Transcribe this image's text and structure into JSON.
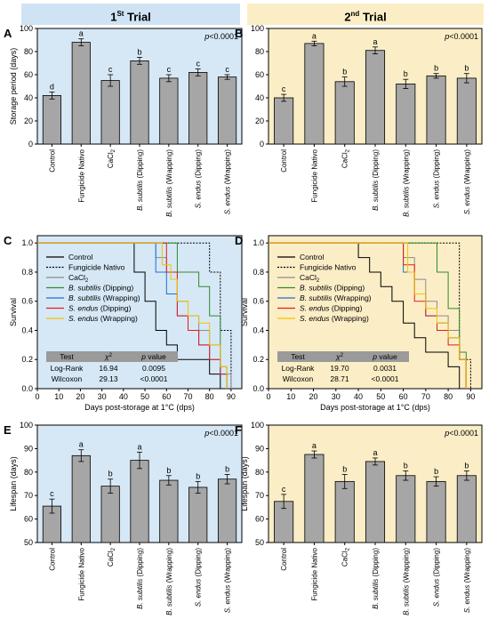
{
  "headers": {
    "trial1": "1St Trial",
    "trial1_main": "1",
    "trial1_sup": "St",
    "trial1_rest": " Trial",
    "trial2_main": "2",
    "trial2_sup": "nd",
    "trial2_rest": " Trial"
  },
  "colors": {
    "trial1_bg": "#d6e8f6",
    "trial2_bg": "#fbeec6",
    "bar": "#a6a6a6",
    "control": "#000000",
    "fungicide": "#000000",
    "cacl2": "#8c8c8c",
    "bs_dip": "#2e8b2e",
    "bs_wrap": "#1f6fd1",
    "se_dip": "#e21c1c",
    "se_wrap": "#f2c200"
  },
  "chart_data": [
    {
      "panel": "A",
      "type": "bar",
      "pvalue": "p<0.0001",
      "ylabel": "Storage period (days)",
      "ylim": [
        0,
        100
      ],
      "yticks": [
        0,
        20,
        40,
        60,
        80,
        100
      ],
      "categories": [
        "Control",
        "Fungicide Nativo",
        "CaCl2",
        "B. subtilis (Dipping)",
        "B. subtilis (Wrapping)",
        "S. endus (Dipping)",
        "S. endus (Wrapping)"
      ],
      "values": [
        42,
        88,
        55,
        72,
        57,
        62,
        58
      ],
      "errors": [
        3,
        3,
        5,
        3,
        3,
        3,
        2
      ],
      "letters": [
        "d",
        "a",
        "c",
        "b",
        "c",
        "c",
        "c"
      ]
    },
    {
      "panel": "B",
      "type": "bar",
      "pvalue": "p<0.0001",
      "ylabel": "",
      "ylim": [
        0,
        100
      ],
      "yticks": [
        0,
        20,
        40,
        60,
        80,
        100
      ],
      "categories": [
        "Control",
        "Fungicide Nativo",
        "CaCl2",
        "B. subtilis (Dipping)",
        "B. subtilis (Wrapping)",
        "S. endus (Dipping)",
        "S. endus (Wrapping)"
      ],
      "values": [
        40,
        87,
        54,
        81,
        52,
        59,
        57
      ],
      "errors": [
        3,
        2,
        4,
        3,
        4,
        2,
        4
      ],
      "letters": [
        "c",
        "a",
        "b",
        "a",
        "b",
        "b",
        "b"
      ]
    },
    {
      "panel": "C",
      "type": "line",
      "ylabel": "Survival",
      "xlabel": "Days post-storage at 1°C (dps)",
      "xlim": [
        0,
        95
      ],
      "ylim": [
        0,
        1.05
      ],
      "xticks": [
        0,
        10,
        20,
        30,
        40,
        50,
        60,
        70,
        80,
        90
      ],
      "yticks": [
        0.0,
        0.2,
        0.4,
        0.6,
        0.8,
        1.0
      ],
      "series": [
        {
          "name": "Control",
          "key": "control",
          "points": [
            [
              0,
              1
            ],
            [
              45,
              1
            ],
            [
              45,
              0.8
            ],
            [
              50,
              0.8
            ],
            [
              50,
              0.6
            ],
            [
              55,
              0.6
            ],
            [
              55,
              0.4
            ],
            [
              60,
              0.4
            ],
            [
              60,
              0.3
            ],
            [
              65,
              0.3
            ],
            [
              65,
              0.2
            ],
            [
              80,
              0.2
            ],
            [
              80,
              0.1
            ],
            [
              85,
              0.1
            ],
            [
              85,
              0
            ]
          ]
        },
        {
          "name": "Fungicide Nativo",
          "key": "fungicide",
          "points": [
            [
              0,
              1
            ],
            [
              80,
              1
            ],
            [
              80,
              0.8
            ],
            [
              85,
              0.8
            ],
            [
              85,
              0.4
            ],
            [
              90,
              0.4
            ],
            [
              90,
              0
            ]
          ]
        },
        {
          "name": "CaCl2",
          "key": "cacl2",
          "points": [
            [
              0,
              1
            ],
            [
              55,
              1
            ],
            [
              55,
              0.9
            ],
            [
              60,
              0.9
            ],
            [
              60,
              0.8
            ],
            [
              65,
              0.8
            ],
            [
              65,
              0.6
            ],
            [
              70,
              0.6
            ],
            [
              70,
              0.5
            ],
            [
              75,
              0.5
            ],
            [
              75,
              0.4
            ],
            [
              80,
              0.4
            ],
            [
              80,
              0.3
            ],
            [
              85,
              0.3
            ],
            [
              85,
              0.1
            ],
            [
              90,
              0.1
            ],
            [
              90,
              0
            ]
          ]
        },
        {
          "name": "B. subtilis (Dipping)",
          "key": "bs_dip",
          "points": [
            [
              0,
              1
            ],
            [
              65,
              1
            ],
            [
              65,
              0.8
            ],
            [
              75,
              0.8
            ],
            [
              75,
              0.7
            ],
            [
              80,
              0.7
            ],
            [
              80,
              0.5
            ],
            [
              85,
              0.5
            ],
            [
              85,
              0.15
            ],
            [
              88,
              0.15
            ],
            [
              88,
              0
            ]
          ]
        },
        {
          "name": "B. subtilis (Wrapping)",
          "key": "bs_wrap",
          "points": [
            [
              0,
              1
            ],
            [
              55,
              1
            ],
            [
              55,
              0.8
            ],
            [
              60,
              0.8
            ],
            [
              60,
              0.65
            ],
            [
              65,
              0.65
            ],
            [
              65,
              0.5
            ],
            [
              70,
              0.5
            ],
            [
              70,
              0.4
            ],
            [
              75,
              0.4
            ],
            [
              75,
              0.3
            ],
            [
              80,
              0.3
            ],
            [
              80,
              0.2
            ],
            [
              85,
              0.2
            ],
            [
              85,
              0.1
            ],
            [
              88,
              0.1
            ],
            [
              88,
              0
            ]
          ]
        },
        {
          "name": "S. endus (Dipping)",
          "key": "se_dip",
          "points": [
            [
              0,
              1
            ],
            [
              60,
              1
            ],
            [
              60,
              0.8
            ],
            [
              65,
              0.8
            ],
            [
              65,
              0.5
            ],
            [
              70,
              0.5
            ],
            [
              70,
              0.4
            ],
            [
              75,
              0.4
            ],
            [
              75,
              0.3
            ],
            [
              80,
              0.3
            ],
            [
              80,
              0.2
            ],
            [
              85,
              0.2
            ],
            [
              85,
              0.1
            ],
            [
              88,
              0.1
            ],
            [
              88,
              0
            ]
          ]
        },
        {
          "name": "S. endus (Wrapping)",
          "key": "se_wrap",
          "points": [
            [
              0,
              1
            ],
            [
              58,
              1
            ],
            [
              58,
              0.85
            ],
            [
              62,
              0.85
            ],
            [
              62,
              0.75
            ],
            [
              65,
              0.75
            ],
            [
              65,
              0.6
            ],
            [
              70,
              0.6
            ],
            [
              70,
              0.5
            ],
            [
              75,
              0.5
            ],
            [
              75,
              0.45
            ],
            [
              80,
              0.45
            ],
            [
              80,
              0.3
            ],
            [
              85,
              0.3
            ],
            [
              85,
              0.15
            ],
            [
              88,
              0.15
            ],
            [
              88,
              0
            ]
          ]
        }
      ],
      "stats_table": {
        "headers": [
          "Test",
          "χ2",
          "p value"
        ],
        "rows": [
          [
            "Log-Rank",
            "16.94",
            "0.0095"
          ],
          [
            "Wilcoxon",
            "29.13",
            "<0.0001"
          ]
        ]
      }
    },
    {
      "panel": "D",
      "type": "line",
      "ylabel": "Survival",
      "xlabel": "Days post-storage at 1°C (dps)",
      "xlim": [
        0,
        95
      ],
      "ylim": [
        0,
        1.05
      ],
      "xticks": [
        0,
        10,
        20,
        30,
        40,
        50,
        60,
        70,
        80,
        90
      ],
      "yticks": [
        0.0,
        0.2,
        0.4,
        0.6,
        0.8,
        1.0
      ],
      "series": [
        {
          "name": "Control",
          "key": "control",
          "points": [
            [
              0,
              1
            ],
            [
              40,
              1
            ],
            [
              40,
              0.9
            ],
            [
              45,
              0.9
            ],
            [
              45,
              0.8
            ],
            [
              50,
              0.8
            ],
            [
              50,
              0.7
            ],
            [
              55,
              0.7
            ],
            [
              55,
              0.6
            ],
            [
              60,
              0.6
            ],
            [
              60,
              0.45
            ],
            [
              65,
              0.45
            ],
            [
              65,
              0.35
            ],
            [
              70,
              0.35
            ],
            [
              70,
              0.25
            ],
            [
              80,
              0.25
            ],
            [
              80,
              0.15
            ],
            [
              85,
              0.15
            ],
            [
              85,
              0
            ]
          ]
        },
        {
          "name": "Fungicide Nativo",
          "key": "fungicide",
          "points": [
            [
              0,
              1
            ],
            [
              85,
              1
            ],
            [
              85,
              0.2
            ],
            [
              90,
              0.2
            ],
            [
              90,
              0
            ]
          ]
        },
        {
          "name": "CaCl2",
          "key": "cacl2",
          "points": [
            [
              0,
              1
            ],
            [
              60,
              1
            ],
            [
              60,
              0.9
            ],
            [
              65,
              0.9
            ],
            [
              65,
              0.75
            ],
            [
              70,
              0.75
            ],
            [
              70,
              0.6
            ],
            [
              75,
              0.6
            ],
            [
              75,
              0.5
            ],
            [
              80,
              0.5
            ],
            [
              80,
              0.4
            ],
            [
              85,
              0.4
            ],
            [
              85,
              0.2
            ],
            [
              88,
              0.2
            ],
            [
              88,
              0
            ]
          ]
        },
        {
          "name": "B. subtilis (Dipping)",
          "key": "bs_dip",
          "points": [
            [
              0,
              1
            ],
            [
              75,
              1
            ],
            [
              75,
              0.8
            ],
            [
              80,
              0.8
            ],
            [
              80,
              0.55
            ],
            [
              85,
              0.55
            ],
            [
              85,
              0.25
            ],
            [
              88,
              0.25
            ],
            [
              88,
              0
            ]
          ]
        },
        {
          "name": "B. subtilis (Wrapping)",
          "key": "bs_wrap",
          "points": [
            [
              0,
              1
            ],
            [
              60,
              1
            ],
            [
              60,
              0.8
            ],
            [
              65,
              0.8
            ],
            [
              65,
              0.65
            ],
            [
              70,
              0.65
            ],
            [
              70,
              0.5
            ],
            [
              75,
              0.5
            ],
            [
              75,
              0.45
            ],
            [
              80,
              0.45
            ],
            [
              80,
              0.35
            ],
            [
              85,
              0.35
            ],
            [
              85,
              0.2
            ],
            [
              88,
              0.2
            ],
            [
              88,
              0
            ]
          ]
        },
        {
          "name": "S. endus (Dipping)",
          "key": "se_dip",
          "points": [
            [
              0,
              1
            ],
            [
              60,
              1
            ],
            [
              60,
              0.85
            ],
            [
              65,
              0.85
            ],
            [
              65,
              0.6
            ],
            [
              70,
              0.6
            ],
            [
              70,
              0.5
            ],
            [
              75,
              0.5
            ],
            [
              75,
              0.4
            ],
            [
              80,
              0.4
            ],
            [
              80,
              0.3
            ],
            [
              85,
              0.3
            ],
            [
              85,
              0.2
            ],
            [
              88,
              0.2
            ],
            [
              88,
              0
            ]
          ]
        },
        {
          "name": "S. endus (Wrapping)",
          "key": "se_wrap",
          "points": [
            [
              0,
              1
            ],
            [
              62,
              1
            ],
            [
              62,
              0.8
            ],
            [
              65,
              0.8
            ],
            [
              65,
              0.65
            ],
            [
              70,
              0.65
            ],
            [
              70,
              0.55
            ],
            [
              75,
              0.55
            ],
            [
              75,
              0.45
            ],
            [
              80,
              0.45
            ],
            [
              80,
              0.35
            ],
            [
              85,
              0.35
            ],
            [
              85,
              0.2
            ],
            [
              88,
              0.2
            ],
            [
              88,
              0
            ]
          ]
        }
      ],
      "stats_table": {
        "headers": [
          "Test",
          "χ2",
          "p value"
        ],
        "rows": [
          [
            "Log-Rank",
            "19.70",
            "0.0031"
          ],
          [
            "Wilcoxon",
            "28.71",
            "<0.0001"
          ]
        ]
      }
    },
    {
      "panel": "E",
      "type": "bar",
      "pvalue": "p<0.0001",
      "ylabel": "Lifespan (days)",
      "ylim": [
        50,
        100
      ],
      "yticks": [
        50,
        60,
        70,
        80,
        90,
        100
      ],
      "categories": [
        "Control",
        "Fungicide Nativo",
        "CaCl2",
        "B. subtilis (Dipping)",
        "B. subtilis (Wrapping)",
        "S. endus (Dipping)",
        "S. endus (Wrapping)"
      ],
      "values": [
        65.5,
        87,
        74,
        85,
        76.5,
        73.5,
        77
      ],
      "errors": [
        3,
        2.5,
        3,
        3.5,
        2,
        2.5,
        2
      ],
      "letters": [
        "c",
        "a",
        "b",
        "a",
        "b",
        "b",
        "b"
      ]
    },
    {
      "panel": "F",
      "type": "bar",
      "pvalue": "p<0.0001",
      "ylabel": "Lifespan (days)",
      "ylim": [
        50,
        100
      ],
      "yticks": [
        50,
        60,
        70,
        80,
        90,
        100
      ],
      "categories": [
        "Control",
        "Fungicide Nativo",
        "CaCl2",
        "B. subtilis (Dipping)",
        "B. subtilis (Wrapping)",
        "S. endus (Dipping)",
        "S. endus (Wrapping)"
      ],
      "values": [
        67.5,
        87.5,
        76,
        84.5,
        78.5,
        76,
        78.5
      ],
      "errors": [
        3,
        1.5,
        3,
        1.5,
        2,
        2,
        2
      ],
      "letters": [
        "c",
        "a",
        "b",
        "a",
        "b",
        "b",
        "b"
      ]
    }
  ]
}
